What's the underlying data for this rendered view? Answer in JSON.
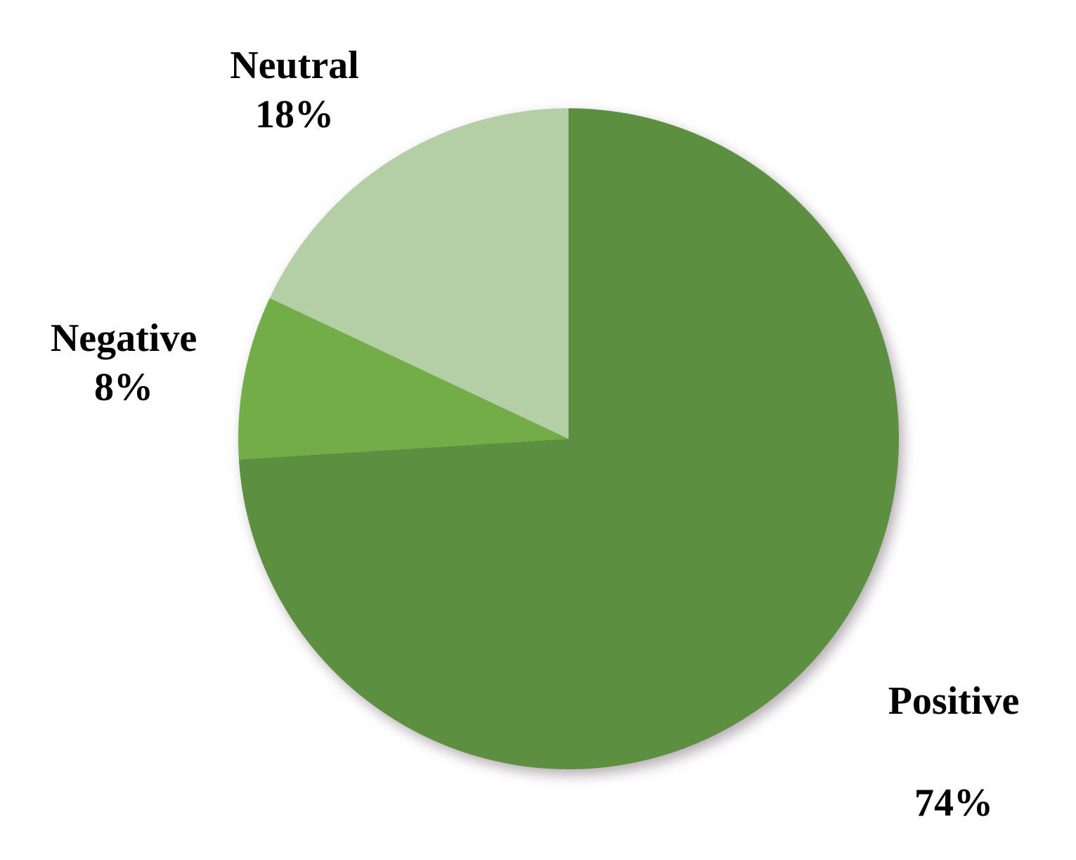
{
  "chart_data": {
    "type": "pie",
    "slices": [
      {
        "label": "Positive",
        "value": 74,
        "display": "74%",
        "color": "#5b8f3f"
      },
      {
        "label": "Negative",
        "value": 8,
        "display": "8%",
        "color": "#72ad46"
      },
      {
        "label": "Neutral",
        "value": 18,
        "display": "18%",
        "color": "#b4cea6"
      }
    ],
    "start_angle_deg": 0,
    "direction": "clockwise",
    "legend": "none",
    "data_labels": "outside"
  }
}
